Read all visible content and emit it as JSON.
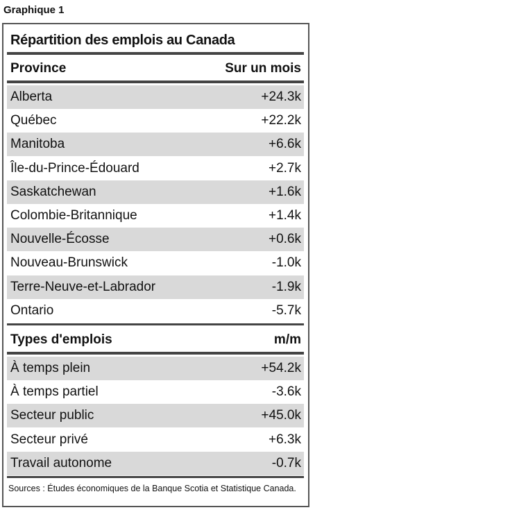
{
  "header": {
    "label": "Graphique 1"
  },
  "table": {
    "title": "Répartition des emplois au Canada",
    "sections": [
      {
        "heading": [
          "Province",
          "Sur un mois"
        ],
        "rows": [
          [
            "Alberta",
            "+24.3k"
          ],
          [
            "Québec",
            "+22.2k"
          ],
          [
            "Manitoba",
            "+6.6k"
          ],
          [
            "Île-du-Prince-Édouard",
            "+2.7k"
          ],
          [
            "Saskatchewan",
            "+1.6k"
          ],
          [
            "Colombie-Britannique",
            "+1.4k"
          ],
          [
            "Nouvelle-Écosse",
            "+0.6k"
          ],
          [
            "Nouveau-Brunswick",
            "-1.0k"
          ],
          [
            "Terre-Neuve-et-Labrador",
            "-1.9k"
          ],
          [
            "Ontario",
            "-5.7k"
          ]
        ]
      },
      {
        "heading": [
          "Types d'emplois",
          "m/m"
        ],
        "rows": [
          [
            "À temps plein",
            "+54.2k"
          ],
          [
            "À temps partiel",
            "-3.6k"
          ],
          [
            "Secteur public",
            "+45.0k"
          ],
          [
            "Secteur privé",
            "+6.3k"
          ],
          [
            "Travail autonome",
            "-0.7k"
          ]
        ]
      }
    ],
    "source": "Sources : Études économiques de la Banque Scotia et Statistique Canada."
  }
}
